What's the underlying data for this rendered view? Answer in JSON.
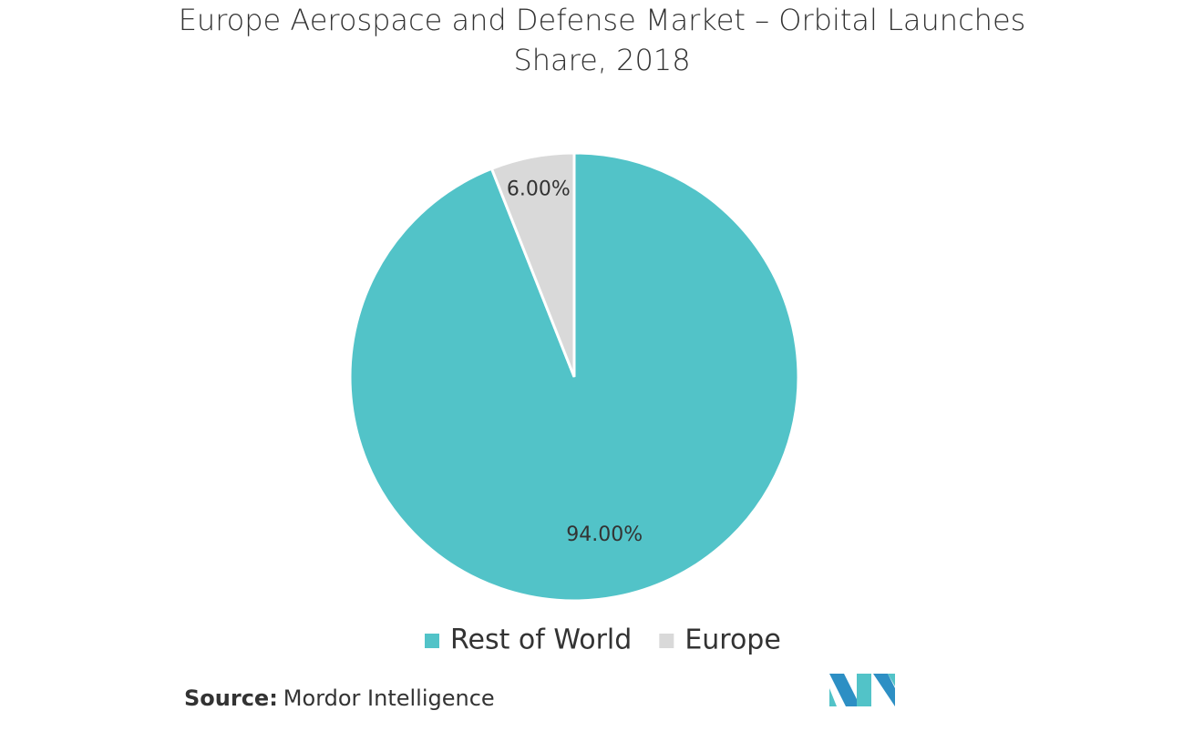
{
  "chart_data": {
    "type": "pie",
    "title": "Europe Aerospace and Defense Market – Orbital Launches Share, 2018",
    "categories": [
      "Rest of World",
      "Europe"
    ],
    "values": [
      94,
      6
    ],
    "value_labels": [
      "94.00%",
      "6.00%"
    ],
    "colors": [
      "#52c3c8",
      "#d9d9d9"
    ]
  },
  "source": {
    "label": "Source:",
    "text": "Mordor Intelligence"
  }
}
